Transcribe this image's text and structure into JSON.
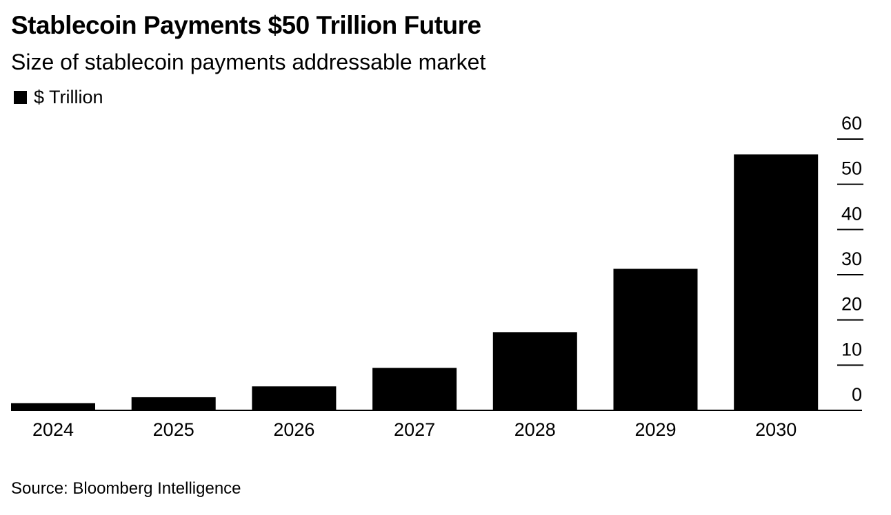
{
  "chart_data": {
    "type": "bar",
    "title": "Stablecoin Payments $50 Trillion Future",
    "subtitle": "Size of stablecoin payments addressable market",
    "legend": [
      {
        "label": "$ Trillion",
        "color": "#000000"
      }
    ],
    "categories": [
      "2024",
      "2025",
      "2026",
      "2027",
      "2028",
      "2029",
      "2030"
    ],
    "series": [
      {
        "name": "$ Trillion",
        "values": [
          1.6,
          2.9,
          5.3,
          9.4,
          17.3,
          31.3,
          56.6
        ]
      }
    ],
    "xlabel": "",
    "ylabel": "",
    "ylim": [
      0,
      60
    ],
    "yticks": [
      0,
      10,
      20,
      30,
      40,
      50,
      60
    ],
    "ytick_labels": [
      "0",
      "10",
      "20",
      "30",
      "40",
      "50",
      "60"
    ],
    "y_axis_side": "right",
    "grid": false,
    "legend_position": "top-left",
    "bar_color": "#000000",
    "source": "Source: Bloomberg Intelligence"
  }
}
